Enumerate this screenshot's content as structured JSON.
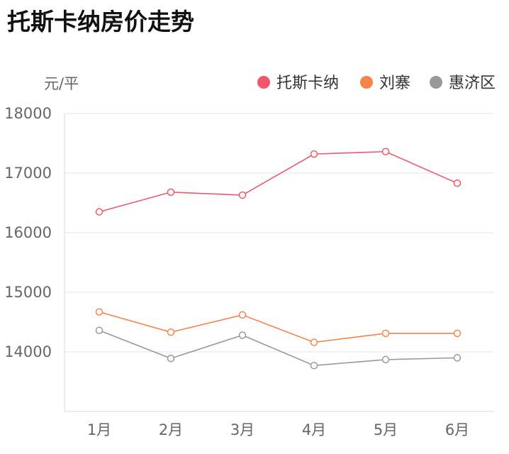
{
  "title": "托斯卡纳房价走势",
  "chart_data": {
    "type": "line",
    "title": "托斯卡纳房价走势",
    "ylabel": "元/平",
    "xlabel": "",
    "categories": [
      "1月",
      "2月",
      "3月",
      "4月",
      "5月",
      "6月"
    ],
    "ylim": [
      13000,
      18000
    ],
    "yticks": [
      14000,
      15000,
      16000,
      17000,
      18000
    ],
    "grid": true,
    "legend_position": "top-right",
    "series": [
      {
        "name": "托斯卡纳",
        "color": "#f0586a",
        "values": [
          16350,
          16680,
          16630,
          17320,
          17360,
          16830
        ]
      },
      {
        "name": "刘寨",
        "color": "#f5844a",
        "values": [
          14670,
          14330,
          14620,
          14160,
          14310,
          14310
        ]
      },
      {
        "name": "惠济区",
        "color": "#999999",
        "values": [
          14360,
          13890,
          14280,
          13770,
          13870,
          13900
        ]
      }
    ]
  }
}
